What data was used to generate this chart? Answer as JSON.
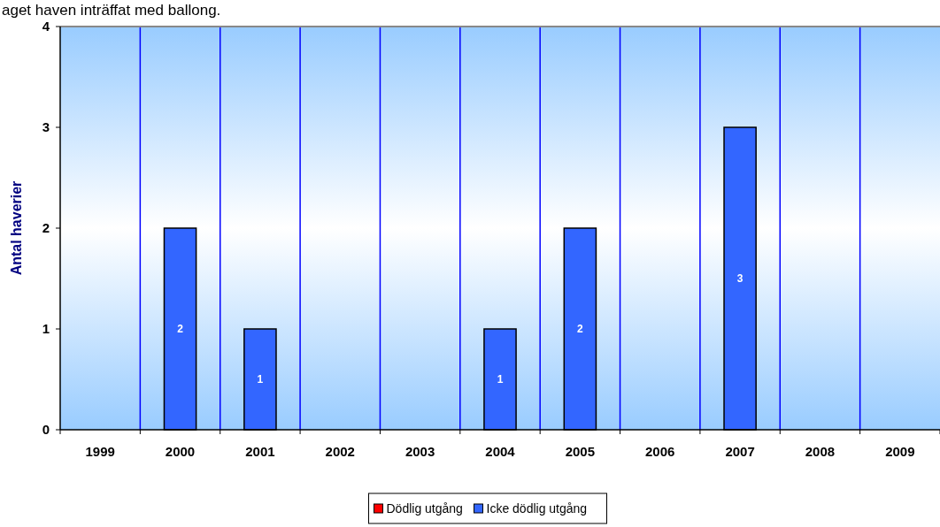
{
  "chart_data": {
    "type": "bar",
    "title": "aget haven inträffat med ballong.",
    "ylabel": "Antal haverier",
    "categories": [
      "1999",
      "2000",
      "2001",
      "2002",
      "2003",
      "2004",
      "2005",
      "2006",
      "2007",
      "2008",
      "2009"
    ],
    "series": [
      {
        "name": "Dödlig utgång",
        "color": "#ff0000",
        "values": [
          0,
          0,
          0,
          0,
          0,
          0,
          0,
          0,
          0,
          0,
          0
        ]
      },
      {
        "name": "Icke dödlig utgång",
        "color": "#3366ff",
        "values": [
          0,
          2,
          1,
          0,
          0,
          1,
          2,
          0,
          3,
          0,
          0
        ],
        "value_labels": [
          null,
          "2",
          "1",
          null,
          null,
          "1",
          "2",
          null,
          "3",
          null,
          null
        ]
      }
    ],
    "ylim": [
      0,
      4
    ],
    "yticks": [
      0,
      1,
      2,
      3,
      4
    ],
    "grid": "x",
    "legend": "bottom"
  }
}
